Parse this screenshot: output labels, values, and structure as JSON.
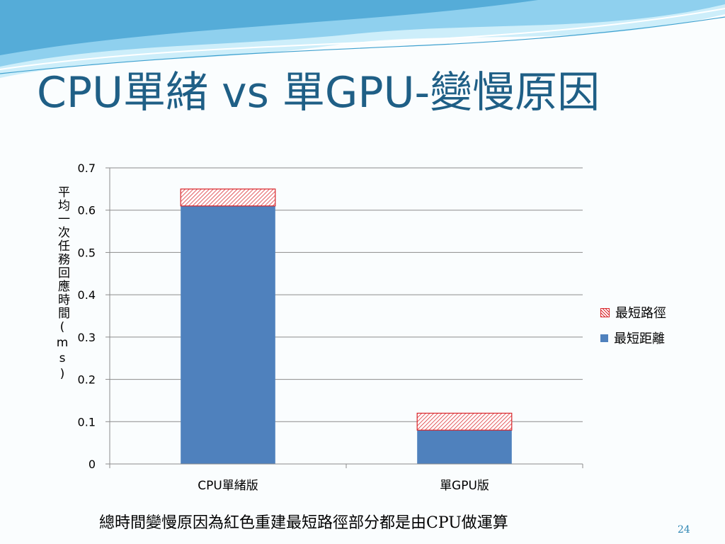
{
  "slide": {
    "title": "CPU單緒 vs 單GPU-變慢原因",
    "footnote": "總時間變慢原因為紅色重建最短路徑部分都是由CPU做運算",
    "page_number": "24"
  },
  "colors": {
    "title": "#1f5f86",
    "series_red": "#d9262b",
    "series_blue": "#4f81bd",
    "wave_light": "#bfe6f5",
    "wave_dark": "#6bb8e0"
  },
  "chart_data": {
    "type": "bar",
    "stacked": true,
    "title": "",
    "xlabel": "",
    "ylabel": "平均一次任務回應時間(ms)",
    "ylim": [
      0,
      0.7
    ],
    "yticks": [
      "0",
      "0.1",
      "0.2",
      "0.3",
      "0.4",
      "0.5",
      "0.6",
      "0.7"
    ],
    "grid": true,
    "legend_position": "right",
    "categories": [
      "CPU單緒版",
      "單GPU版"
    ],
    "series": [
      {
        "name": "最短距離",
        "values": [
          0.61,
          0.08
        ],
        "color": "#4f81bd",
        "pattern": "solid"
      },
      {
        "name": "最短路徑",
        "values": [
          0.04,
          0.04
        ],
        "color": "#d9262b",
        "pattern": "hatched"
      }
    ]
  }
}
